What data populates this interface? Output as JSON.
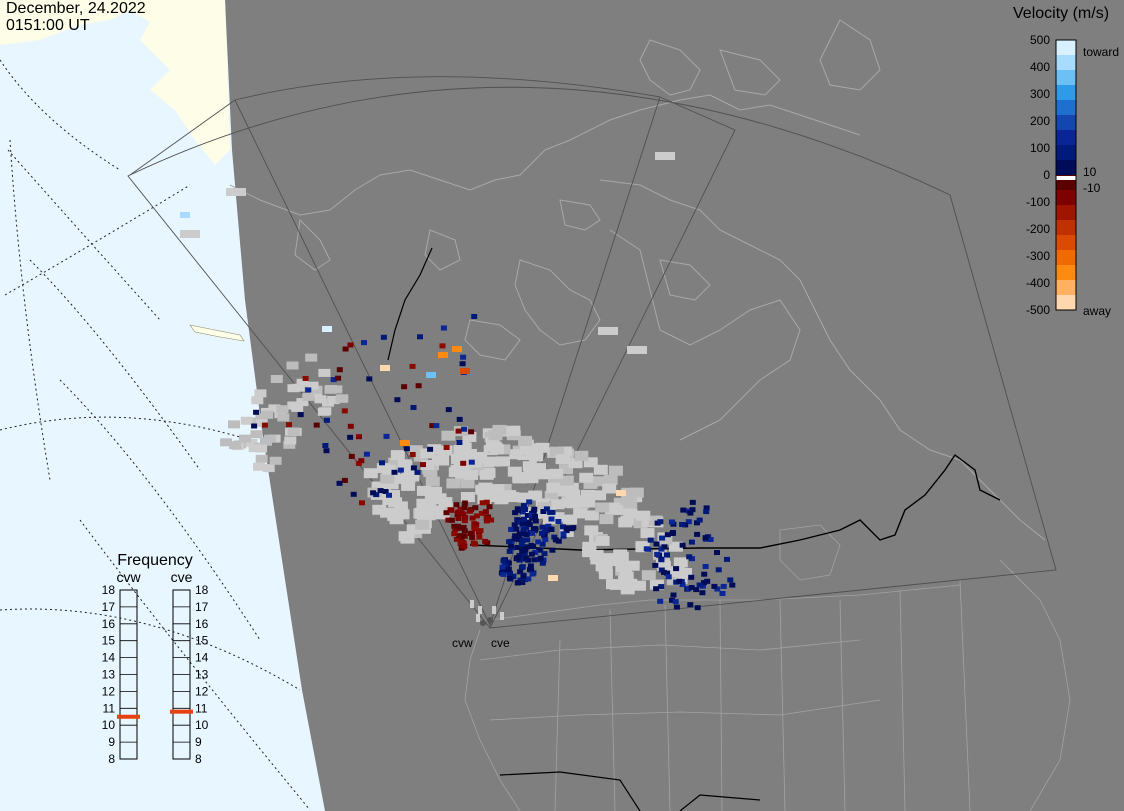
{
  "header": {
    "date": "December, 24.2022",
    "time": "0151:00 UT"
  },
  "velocity_legend": {
    "title": "Velocity (m/s)",
    "ticks": [
      "500",
      "400",
      "300",
      "200",
      "100",
      "0",
      "-100",
      "-200",
      "-300",
      "-400",
      "-500"
    ],
    "toward_label": "toward",
    "away_label": "away",
    "pos_threshold": "10",
    "neg_threshold": "-10",
    "colors_top_to_bottom": [
      "#d8f0ff",
      "#a8dcff",
      "#6cc0f4",
      "#2f9ae8",
      "#1f6fd0",
      "#1446b0",
      "#0a2596",
      "#001a7a",
      "#000c58",
      "#5a0000",
      "#7f0000",
      "#a01500",
      "#c03000",
      "#db4a00",
      "#f06a00",
      "#ff8a10",
      "#ffb060",
      "#ffd8b0"
    ]
  },
  "frequency_panel": {
    "title": "Frequency",
    "radars": [
      {
        "name": "cvw",
        "frequency": 10.5
      },
      {
        "name": "cve",
        "frequency": 10.8
      }
    ],
    "scale": [
      "18",
      "17",
      "16",
      "15",
      "14",
      "13",
      "12",
      "11",
      "10",
      "9",
      "8"
    ]
  },
  "radar_sites": [
    {
      "name": "cvw"
    },
    {
      "name": "cve"
    }
  ],
  "colors": {
    "ocean": "#e8f6ff",
    "ice": "#fdfde8",
    "night": "#7f7f7f",
    "ground_scatter": "#cccccc",
    "coast": "#a8a8a8",
    "fov": "#505050",
    "border": "#000000",
    "freq_marker": "#e84010"
  }
}
